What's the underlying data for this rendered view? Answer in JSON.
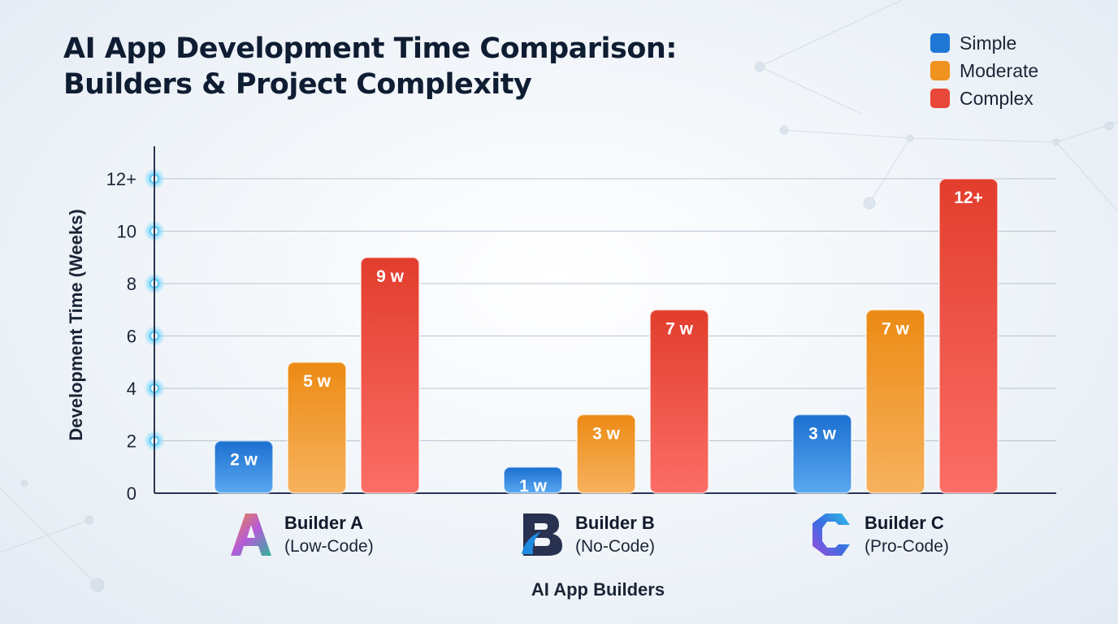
{
  "title_line1": "AI App Development Time Comparison:",
  "title_line2": "Builders & Project Complexity",
  "legend": [
    {
      "label": "Simple",
      "color": "#1f78d6"
    },
    {
      "label": "Moderate",
      "color": "#f0921f"
    },
    {
      "label": "Complex",
      "color": "#e8483a"
    }
  ],
  "builders": [
    {
      "name": "Builder A",
      "type": "(Low-Code)",
      "logo": "letter-a-gradient-logo"
    },
    {
      "name": "Builder B",
      "type": "(No-Code)",
      "logo": "letter-b-navy-logo"
    },
    {
      "name": "Builder C",
      "type": "(Pro-Code)",
      "logo": "letter-c-gradient-logo"
    }
  ],
  "chart_data": {
    "type": "bar",
    "categories": [
      "Builder A (Low-Code)",
      "Builder B (No-Code)",
      "Builder C (Pro-Code)"
    ],
    "series": [
      {
        "name": "Simple",
        "values": [
          2,
          1,
          3
        ],
        "labels": [
          "2 w",
          "1 w",
          "3 w"
        ]
      },
      {
        "name": "Moderate",
        "values": [
          5,
          3,
          7
        ],
        "labels": [
          "5 w",
          "3 w",
          "7 w"
        ]
      },
      {
        "name": "Complex",
        "values": [
          9,
          7,
          12
        ],
        "labels": [
          "9 w",
          "7 w",
          "12+"
        ]
      }
    ],
    "xlabel": "AI App Builders",
    "ylabel": "Development Time (Weeks)",
    "ylim": [
      0,
      12
    ],
    "yticks": [
      "0",
      "2",
      "4",
      "6",
      "8",
      "10",
      "12+"
    ],
    "grid": true,
    "legend_position": "top-right"
  }
}
